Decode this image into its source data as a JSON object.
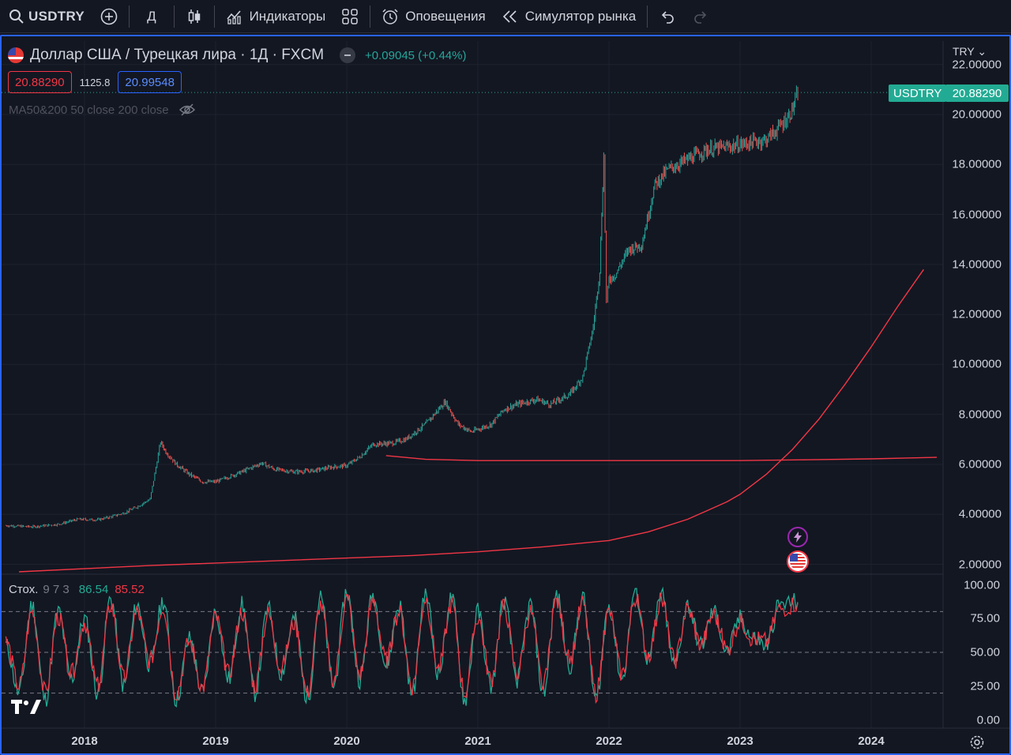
{
  "toolbar": {
    "symbol": "USDTRY",
    "interval": "Д",
    "indicators_label": "Индикаторы",
    "alerts_label": "Оповещения",
    "replay_label": "Симулятор рынка"
  },
  "legend": {
    "title": "Доллар США / Турецкая лира · 1Д · FXCM",
    "change": "+0.09045 (+0.44%)",
    "bid": "20.88290",
    "spread": "1125.8",
    "ask": "20.99548",
    "ma_label": "MA50&200 50 close 200 close"
  },
  "stoch_legend": {
    "name": "Стох.",
    "params": "9 7 3",
    "k": "86.54",
    "d": "85.52"
  },
  "price_scale": {
    "currency": "TRY",
    "ticks": [
      "22.00000",
      "20.00000",
      "18.00000",
      "16.00000",
      "14.00000",
      "12.00000",
      "10.00000",
      "8.00000",
      "6.00000",
      "4.00000",
      "2.00000"
    ]
  },
  "stoch_scale": {
    "ticks": [
      "100.00",
      "75.00",
      "50.00",
      "25.00",
      "0.00"
    ]
  },
  "time_scale": {
    "ticks": [
      "2018",
      "2019",
      "2020",
      "2021",
      "2022",
      "2023",
      "2024"
    ]
  },
  "last_price": {
    "symbol": "USDTRY",
    "value": "20.88290"
  },
  "colors": {
    "background": "#131722",
    "up": "#26a69a",
    "down": "#ef5350",
    "ma": "#f23645",
    "stoch_k": "#22ab94",
    "stoch_d": "#f23645",
    "accent": "#2962ff"
  },
  "chart_data": [
    {
      "type": "line",
      "series": [
        {
          "name": "USDTRY",
          "x": [
            2017.4,
            2017.6,
            2017.8,
            2017.95,
            2018.1,
            2018.2,
            2018.3,
            2018.4,
            2018.5,
            2018.58,
            2018.62,
            2018.7,
            2018.8,
            2018.9,
            2019.0,
            2019.1,
            2019.2,
            2019.35,
            2019.45,
            2019.6,
            2019.75,
            2019.9,
            2020.0,
            2020.1,
            2020.2,
            2020.35,
            2020.45,
            2020.6,
            2020.75,
            2020.85,
            2020.95,
            2021.1,
            2021.2,
            2021.3,
            2021.45,
            2021.55,
            2021.7,
            2021.8,
            2021.88,
            2021.93,
            2021.96,
            2021.98,
            2022.0,
            2022.05,
            2022.15,
            2022.25,
            2022.35,
            2022.45,
            2022.6,
            2022.75,
            2022.9,
            2023.0,
            2023.1,
            2023.2,
            2023.3,
            2023.38,
            2023.42,
            2023.44
          ],
          "y": [
            3.55,
            3.5,
            3.6,
            3.8,
            3.78,
            3.9,
            4.05,
            4.3,
            4.6,
            6.9,
            6.5,
            6.0,
            5.6,
            5.3,
            5.3,
            5.5,
            5.7,
            6.05,
            5.8,
            5.7,
            5.75,
            5.9,
            5.95,
            6.3,
            6.8,
            6.85,
            7.0,
            7.6,
            8.5,
            7.6,
            7.3,
            7.6,
            8.2,
            8.4,
            8.6,
            8.4,
            8.8,
            9.5,
            11.5,
            13.8,
            18.3,
            12.5,
            13.4,
            13.6,
            14.6,
            14.8,
            17.2,
            17.8,
            18.2,
            18.6,
            18.7,
            18.8,
            18.9,
            19.0,
            19.5,
            20.0,
            20.5,
            20.88
          ]
        },
        {
          "name": "MA50",
          "x": [
            2017.5,
            2018.5,
            2019.5,
            2020.5,
            2021.0,
            2021.5,
            2022.0,
            2022.3,
            2022.6,
            2022.9,
            2023.0,
            2023.2,
            2023.4,
            2023.6,
            2023.8,
            2024.0,
            2024.2,
            2024.4
          ],
          "y": [
            1.7,
            1.95,
            2.15,
            2.35,
            2.5,
            2.7,
            2.95,
            3.3,
            3.8,
            4.5,
            4.8,
            5.6,
            6.6,
            7.8,
            9.2,
            10.7,
            12.3,
            13.8
          ]
        },
        {
          "name": "MA200",
          "x": [
            2020.3,
            2020.6,
            2021.0,
            2021.5,
            2022.0,
            2022.5,
            2023.0,
            2023.5,
            2024.0,
            2024.5
          ],
          "y": [
            6.35,
            6.2,
            6.15,
            6.15,
            6.15,
            6.15,
            6.15,
            6.18,
            6.22,
            6.28
          ]
        }
      ],
      "xlim": [
        2017.35,
        2024.55
      ],
      "ylim": [
        1.75,
        22.7
      ]
    },
    {
      "type": "line",
      "title": "Стох. 9 7 3",
      "levels": [
        80,
        50,
        20
      ],
      "ylim": [
        0,
        100
      ],
      "series": [
        {
          "name": "K",
          "x": [
            2017.4,
            2017.5,
            2017.6,
            2017.7,
            2017.8,
            2017.9,
            2018.0,
            2018.1,
            2018.2,
            2018.3,
            2018.4,
            2018.5,
            2018.6,
            2018.7,
            2018.8,
            2018.9,
            2019.0,
            2019.1,
            2019.2,
            2019.3,
            2019.4,
            2019.5,
            2019.6,
            2019.7,
            2019.8,
            2019.9,
            2020.0,
            2020.1,
            2020.2,
            2020.3,
            2020.4,
            2020.5,
            2020.6,
            2020.7,
            2020.8,
            2020.9,
            2021.0,
            2021.1,
            2021.2,
            2021.3,
            2021.4,
            2021.5,
            2021.6,
            2021.7,
            2021.8,
            2021.9,
            2022.0,
            2022.1,
            2022.2,
            2022.3,
            2022.4,
            2022.5,
            2022.6,
            2022.7,
            2022.8,
            2022.9,
            2023.0,
            2023.1,
            2023.2,
            2023.3,
            2023.44
          ],
          "y": [
            55,
            20,
            85,
            15,
            80,
            30,
            75,
            20,
            90,
            25,
            85,
            40,
            88,
            15,
            60,
            20,
            80,
            30,
            85,
            20,
            82,
            35,
            75,
            15,
            90,
            25,
            95,
            30,
            92,
            40,
            85,
            20,
            95,
            35,
            90,
            15,
            80,
            25,
            88,
            30,
            85,
            20,
            92,
            40,
            90,
            15,
            85,
            30,
            95,
            45,
            92,
            40,
            85,
            55,
            80,
            50,
            75,
            60,
            55,
            85,
            87
          ]
        },
        {
          "name": "D",
          "x": [
            2017.4,
            2017.5,
            2017.6,
            2017.7,
            2017.8,
            2017.9,
            2018.0,
            2018.1,
            2018.2,
            2018.3,
            2018.4,
            2018.5,
            2018.6,
            2018.7,
            2018.8,
            2018.9,
            2019.0,
            2019.1,
            2019.2,
            2019.3,
            2019.4,
            2019.5,
            2019.6,
            2019.7,
            2019.8,
            2019.9,
            2020.0,
            2020.1,
            2020.2,
            2020.3,
            2020.4,
            2020.5,
            2020.6,
            2020.7,
            2020.8,
            2020.9,
            2021.0,
            2021.1,
            2021.2,
            2021.3,
            2021.4,
            2021.5,
            2021.6,
            2021.7,
            2021.8,
            2021.9,
            2022.0,
            2022.1,
            2022.2,
            2022.3,
            2022.4,
            2022.5,
            2022.6,
            2022.7,
            2022.8,
            2022.9,
            2023.0,
            2023.1,
            2023.2,
            2023.3,
            2023.44
          ],
          "y": [
            58,
            25,
            80,
            20,
            76,
            34,
            72,
            25,
            85,
            30,
            80,
            44,
            84,
            20,
            58,
            24,
            76,
            34,
            80,
            25,
            78,
            38,
            72,
            20,
            85,
            30,
            90,
            34,
            88,
            44,
            80,
            25,
            90,
            38,
            86,
            20,
            76,
            30,
            84,
            34,
            80,
            25,
            88,
            44,
            86,
            20,
            80,
            34,
            90,
            48,
            88,
            44,
            82,
            56,
            78,
            52,
            73,
            60,
            58,
            82,
            86
          ]
        }
      ]
    }
  ]
}
